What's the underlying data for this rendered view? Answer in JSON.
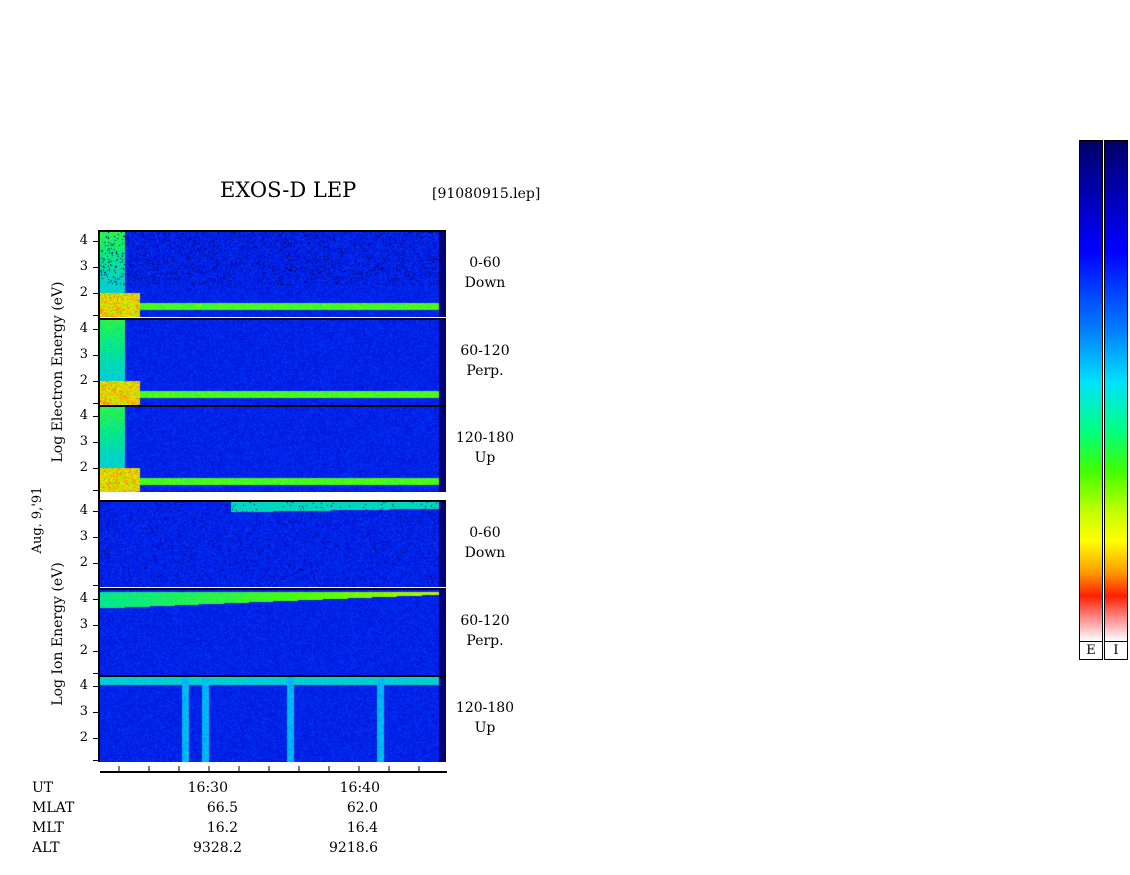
{
  "header": {
    "title": "EXOS-D LEP",
    "file_id": "[91080915.lep]"
  },
  "date_label": "Aug. 9,'91",
  "groups": {
    "electron": {
      "ylabel": "Log   Electron   Energy  (eV)"
    },
    "ion": {
      "ylabel": "Log    Ion   Energy  (eV)"
    }
  },
  "panels": [
    {
      "species": "electron",
      "pitch": "0-60",
      "dir": "Down",
      "ticks": [
        "4",
        "3",
        "2"
      ]
    },
    {
      "species": "electron",
      "pitch": "60-120",
      "dir": "Perp.",
      "ticks": [
        "4",
        "3",
        "2"
      ]
    },
    {
      "species": "electron",
      "pitch": "120-180",
      "dir": "Up",
      "ticks": [
        "4",
        "3",
        "2"
      ]
    },
    {
      "species": "ion",
      "pitch": "0-60",
      "dir": "Down",
      "ticks": [
        "4",
        "3",
        "2"
      ]
    },
    {
      "species": "ion",
      "pitch": "60-120",
      "dir": "Perp.",
      "ticks": [
        "4",
        "3",
        "2"
      ]
    },
    {
      "species": "ion",
      "pitch": "120-180",
      "dir": "Up",
      "ticks": [
        "4",
        "3",
        "2"
      ]
    }
  ],
  "info": {
    "labels": [
      "UT",
      "MLAT",
      "MLT",
      "ALT"
    ],
    "columns": [
      {
        "ut": "16:30",
        "mlat": "66.5",
        "mlt": "16.2",
        "alt": "9328.2"
      },
      {
        "ut": "16:40",
        "mlat": "62.0",
        "mlt": "16.4",
        "alt": "9218.6"
      }
    ]
  },
  "colorbars": [
    {
      "label": "E"
    },
    {
      "label": "I"
    }
  ],
  "chart_data": {
    "type": "heatmap",
    "title": "EXOS-D LEP",
    "xlabel": "UT",
    "x_ticks": [
      "16:30",
      "16:40"
    ],
    "ylabel": "Log Energy (eV)",
    "ylim": [
      1,
      4
    ],
    "y_ticks": [
      2,
      3,
      4
    ],
    "series": [
      {
        "name": "Electron 0-60 Down"
      },
      {
        "name": "Electron 60-120 Perp."
      },
      {
        "name": "Electron 120-180 Up"
      },
      {
        "name": "Ion 0-60 Down"
      },
      {
        "name": "Ion 60-120 Perp."
      },
      {
        "name": "Ion 120-180 Up"
      }
    ],
    "colorscale": [
      "#ffffff",
      "#ff0000",
      "#ffcc00",
      "#ffff00",
      "#00ff00",
      "#00ffff",
      "#0000ff",
      "#000080"
    ]
  }
}
